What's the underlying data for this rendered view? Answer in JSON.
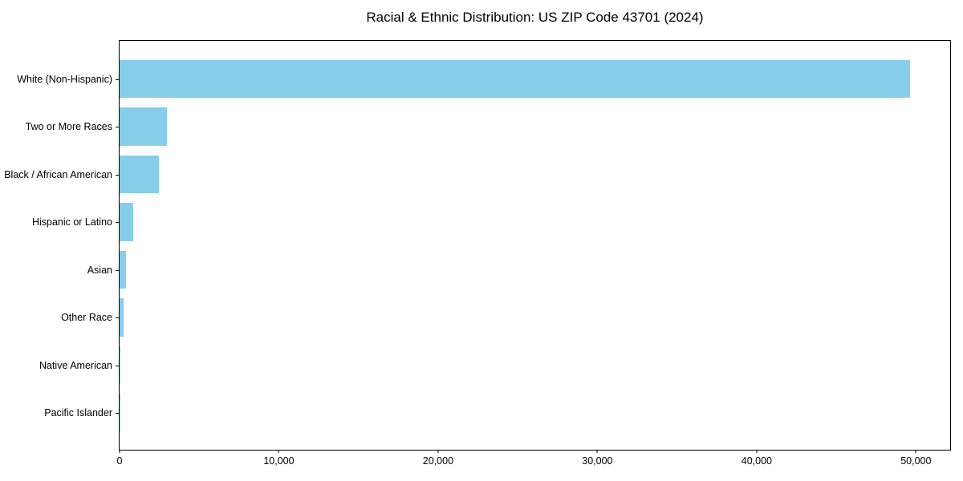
{
  "chart_data": {
    "type": "bar",
    "orientation": "horizontal",
    "title": "Racial & Ethnic Distribution: US ZIP Code 43701 (2024)",
    "categories": [
      "White (Non-Hispanic)",
      "Two or More Races",
      "Black / African American",
      "Hispanic or Latino",
      "Asian",
      "Other Race",
      "Native American",
      "Pacific Islander"
    ],
    "values": [
      49650,
      2970,
      2470,
      870,
      400,
      250,
      40,
      15
    ],
    "xlabel": "",
    "ylabel": "",
    "xlim": [
      0,
      52150
    ],
    "x_ticks": [
      0,
      10000,
      20000,
      30000,
      40000,
      50000
    ],
    "x_tick_labels": [
      "0",
      "10,000",
      "20,000",
      "30,000",
      "40,000",
      "50,000"
    ],
    "bar_color": "#87CEEB",
    "grid": false,
    "legend": "none",
    "bar_fraction": 0.8
  }
}
